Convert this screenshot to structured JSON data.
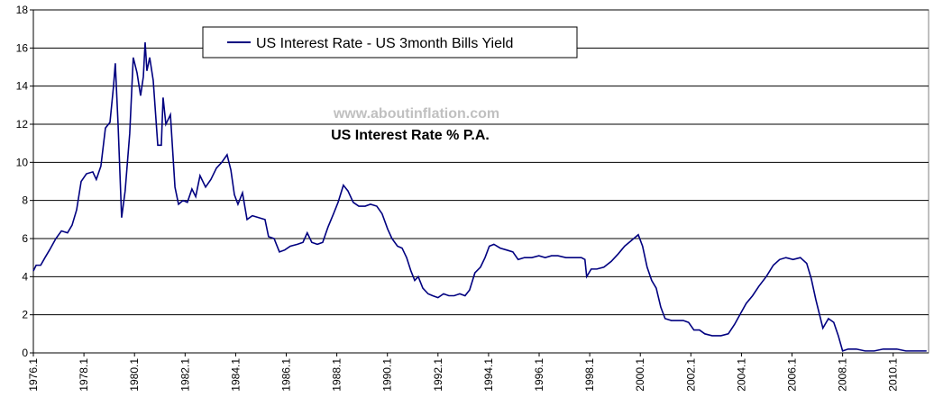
{
  "chart_data": {
    "type": "line",
    "series": [
      {
        "name": "US Interest Rate - US 3month Bills Yield",
        "color": "#000080",
        "x": [
          1976.0,
          1976.11,
          1976.29,
          1976.46,
          1976.64,
          1976.89,
          1977.11,
          1977.35,
          1977.53,
          1977.71,
          1977.89,
          1978.1,
          1978.35,
          1978.49,
          1978.67,
          1978.85,
          1979.03,
          1979.17,
          1979.24,
          1979.35,
          1979.49,
          1979.63,
          1979.81,
          1979.95,
          1980.1,
          1980.24,
          1980.35,
          1980.42,
          1980.49,
          1980.6,
          1980.74,
          1980.92,
          1981.06,
          1981.13,
          1981.24,
          1981.42,
          1981.6,
          1981.74,
          1981.92,
          1982.09,
          1982.27,
          1982.42,
          1982.59,
          1982.81,
          1983.02,
          1983.24,
          1983.45,
          1983.66,
          1983.81,
          1983.95,
          1984.09,
          1984.27,
          1984.45,
          1984.66,
          1984.91,
          1985.16,
          1985.3,
          1985.52,
          1985.73,
          1985.94,
          1986.16,
          1986.44,
          1986.66,
          1986.83,
          1987.01,
          1987.23,
          1987.44,
          1987.65,
          1987.87,
          1988.05,
          1988.26,
          1988.44,
          1988.65,
          1988.87,
          1989.12,
          1989.33,
          1989.58,
          1989.79,
          1990.01,
          1990.18,
          1990.4,
          1990.58,
          1990.76,
          1990.93,
          1991.08,
          1991.22,
          1991.4,
          1991.61,
          1991.79,
          1992.0,
          1992.22,
          1992.43,
          1992.64,
          1992.86,
          1993.07,
          1993.25,
          1993.46,
          1993.68,
          1993.86,
          1994.03,
          1994.21,
          1994.46,
          1994.71,
          1994.96,
          1995.17,
          1995.42,
          1995.71,
          1995.99,
          1996.24,
          1996.49,
          1996.74,
          1997.06,
          1997.35,
          1997.67,
          1997.81,
          1997.88,
          1998.06,
          1998.28,
          1998.56,
          1998.85,
          1999.13,
          1999.38,
          1999.56,
          1999.74,
          1999.92,
          2000.09,
          2000.27,
          2000.45,
          2000.63,
          2000.81,
          2000.98,
          2001.23,
          2001.48,
          2001.7,
          2001.91,
          2002.12,
          2002.34,
          2002.55,
          2002.84,
          2003.19,
          2003.48,
          2003.73,
          2003.98,
          2004.19,
          2004.44,
          2004.69,
          2004.98,
          2005.26,
          2005.51,
          2005.76,
          2006.04,
          2006.33,
          2006.58,
          2006.76,
          2006.94,
          2007.22,
          2007.44,
          2007.65,
          2007.83,
          2008.0,
          2008.22,
          2008.54,
          2008.89,
          2009.25,
          2009.61,
          2010.14,
          2010.5,
          2010.86,
          2011.32
        ],
        "values": [
          4.3,
          4.6,
          4.6,
          5.0,
          5.4,
          6.0,
          6.4,
          6.3,
          6.7,
          7.5,
          9.0,
          9.4,
          9.5,
          9.1,
          9.8,
          11.8,
          12.1,
          14.0,
          15.2,
          12.0,
          7.1,
          8.5,
          11.5,
          15.5,
          14.7,
          13.5,
          14.5,
          16.3,
          14.8,
          15.5,
          14.3,
          10.9,
          10.9,
          13.4,
          12.0,
          12.5,
          8.7,
          7.8,
          8.0,
          7.9,
          8.6,
          8.2,
          9.3,
          8.7,
          9.1,
          9.7,
          10.0,
          10.4,
          9.6,
          8.3,
          7.8,
          8.4,
          7.0,
          7.2,
          7.1,
          7.0,
          6.1,
          6.0,
          5.3,
          5.4,
          5.6,
          5.7,
          5.8,
          6.3,
          5.8,
          5.7,
          5.8,
          6.6,
          7.3,
          7.9,
          8.8,
          8.5,
          7.9,
          7.7,
          7.7,
          7.8,
          7.7,
          7.3,
          6.5,
          6.0,
          5.6,
          5.5,
          5.0,
          4.3,
          3.8,
          4.0,
          3.4,
          3.1,
          3.0,
          2.9,
          3.1,
          3.0,
          3.0,
          3.1,
          3.0,
          3.3,
          4.2,
          4.5,
          5.0,
          5.6,
          5.7,
          5.5,
          5.4,
          5.3,
          4.9,
          5.0,
          5.0,
          5.1,
          5.0,
          5.1,
          5.1,
          5.0,
          5.0,
          5.0,
          4.9,
          4.0,
          4.4,
          4.4,
          4.5,
          4.8,
          5.2,
          5.6,
          5.8,
          6.0,
          6.2,
          5.6,
          4.5,
          3.8,
          3.4,
          2.4,
          1.8,
          1.7,
          1.7,
          1.7,
          1.6,
          1.2,
          1.2,
          1.0,
          0.9,
          0.9,
          1.0,
          1.5,
          2.1,
          2.6,
          3.0,
          3.5,
          4.0,
          4.6,
          4.9,
          5.0,
          4.9,
          5.0,
          4.7,
          3.9,
          2.8,
          1.3,
          1.8,
          1.6,
          0.9,
          0.1,
          0.2,
          0.2,
          0.1,
          0.1,
          0.2,
          0.2,
          0.1,
          0.1,
          0.1
        ]
      }
    ],
    "annotations": [
      "www.aboutinflation.com",
      "US Interest Rate % P.A."
    ],
    "xlim": [
      1976,
      2011.4
    ],
    "xticks": [
      {
        "value": 1976,
        "label": "1976.1"
      },
      {
        "value": 1978,
        "label": "1978.1"
      },
      {
        "value": 1980,
        "label": "1980.1"
      },
      {
        "value": 1982,
        "label": "1982.1"
      },
      {
        "value": 1984,
        "label": "1984.1"
      },
      {
        "value": 1986,
        "label": "1986.1"
      },
      {
        "value": 1988,
        "label": "1988.1"
      },
      {
        "value": 1990,
        "label": "1990.1"
      },
      {
        "value": 1992,
        "label": "1992.1"
      },
      {
        "value": 1994,
        "label": "1994.1"
      },
      {
        "value": 1996,
        "label": "1996.1"
      },
      {
        "value": 1998,
        "label": "1998.1"
      },
      {
        "value": 2000,
        "label": "2000.1"
      },
      {
        "value": 2002,
        "label": "2002.1"
      },
      {
        "value": 2004,
        "label": "2004.1"
      },
      {
        "value": 2006,
        "label": "2006.1"
      },
      {
        "value": 2008,
        "label": "2008.1"
      },
      {
        "value": 2010,
        "label": "2010.1"
      }
    ],
    "ylim": [
      0,
      18
    ],
    "yticks": [
      0,
      2,
      4,
      6,
      8,
      10,
      12,
      14,
      16,
      18
    ],
    "grid": true
  }
}
